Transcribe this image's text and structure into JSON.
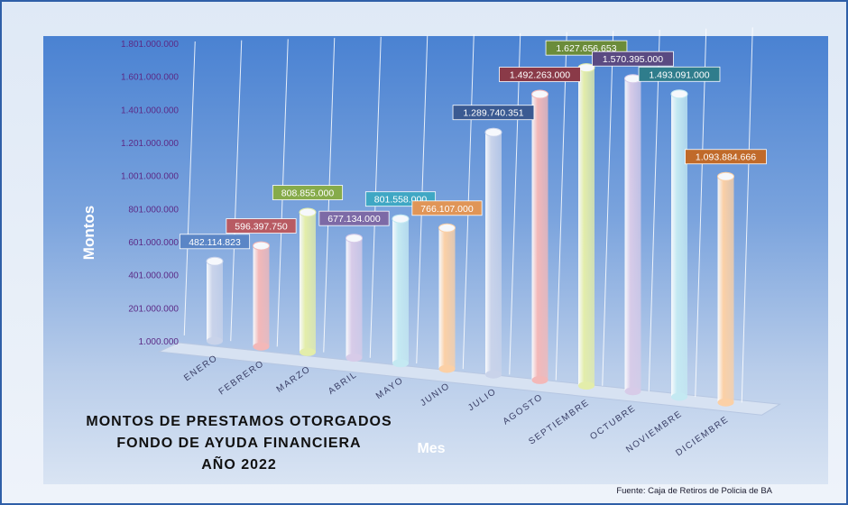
{
  "chart_data": {
    "type": "bar",
    "title_lines": [
      "MONTOS  DE  PRESTAMOS  OTORGADOS",
      "FONDO  DE  AYUDA  FINANCIERA",
      "AÑO   2022"
    ],
    "xlabel": "Mes",
    "ylabel": "Montos",
    "source": "Fuente: Caja de Retiros de Policia de BA",
    "y_ticks": [
      "1.000.000",
      "201.000.000",
      "401.000.000",
      "601.000.000",
      "801.000.000",
      "1.001.000.000",
      "1.201.000.000",
      "1.401.000.000",
      "1.601.000.000",
      "1.801.000.000"
    ],
    "ylim": [
      1000000,
      1801000000
    ],
    "categories": [
      "ENERO",
      "FEBRERO",
      "MARZO",
      "ABRIL",
      "MAYO",
      "JUNIO",
      "JULIO",
      "AGOSTO",
      "SEPTIEMBRE",
      "OCTUBRE",
      "NOVIEMBRE",
      "DICIEMBRE"
    ],
    "values": [
      482114823,
      596397750,
      808855000,
      677134000,
      801558000,
      766107000,
      1289740351,
      1492263000,
      1627656653,
      1570395000,
      1493091000,
      1093884666
    ],
    "value_labels": [
      "482.114.823",
      "596.397.750",
      "808.855.000",
      "677.134.000",
      "801.558.000",
      "766.107.000",
      "1.289.740.351",
      "1.492.263.000",
      "1.627.656.653",
      "1.570.395.000",
      "1.493.091.000",
      "1.093.884.666"
    ],
    "bar_colors": [
      "#c9d3ea",
      "#f3b8b8",
      "#e3edaa",
      "#d7cbe8",
      "#c4e9f2",
      "#fbd0a6",
      "#c9d3ea",
      "#f3b8b8",
      "#e3edaa",
      "#d7cbe8",
      "#c4e9f2",
      "#fbd0a6"
    ],
    "label_colors": [
      "#5b86c6",
      "#b85b63",
      "#86ab4a",
      "#7d6aa6",
      "#3fa7c4",
      "#e09557",
      "#3a5a92",
      "#8a3a48",
      "#6b8c3a",
      "#5a4a82",
      "#2f7d8c",
      "#c06a2a"
    ],
    "grid": true,
    "legend": "none"
  }
}
